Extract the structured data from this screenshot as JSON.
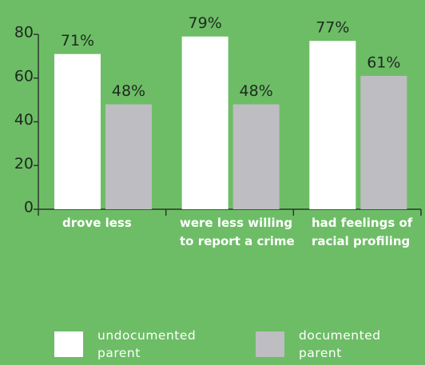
{
  "chart_data": {
    "type": "bar",
    "categories": [
      "drove less",
      "were less willing to report a crime",
      "had feelings of racial profiling"
    ],
    "series": [
      {
        "name": "undocumented parent",
        "color": "#ffffff",
        "values": [
          71,
          79,
          77
        ],
        "value_labels": [
          "71%",
          "79%",
          "77%"
        ]
      },
      {
        "name": "documented parent",
        "color": "#bdbdc2",
        "values": [
          48,
          48,
          61
        ],
        "value_labels": [
          "48%",
          "48%",
          "61%"
        ]
      }
    ],
    "ylim": [
      0,
      80
    ],
    "yticks": [
      0,
      20,
      40,
      60,
      80
    ]
  }
}
